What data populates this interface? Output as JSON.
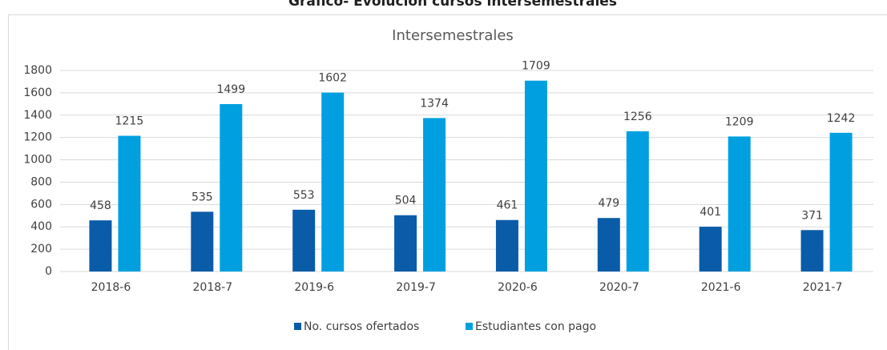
{
  "page_title": "Gráfico- Evolución cursos intersemestrales",
  "chart_data": {
    "type": "bar",
    "title": "Intersemestrales",
    "categories": [
      "2018-6",
      "2018-7",
      "2019-6",
      "2019-7",
      "2020-6",
      "2020-7",
      "2021-6",
      "2021-7"
    ],
    "series": [
      {
        "name": "No. cursos ofertados",
        "color": "#0a5ca8",
        "values": [
          458,
          535,
          553,
          504,
          461,
          479,
          401,
          371
        ]
      },
      {
        "name": "Estudiantes con pago",
        "color": "#00a0e0",
        "values": [
          1215,
          1499,
          1602,
          1374,
          1709,
          1256,
          1209,
          1242
        ]
      }
    ],
    "ylim": [
      0,
      1800
    ],
    "yticks": [
      0,
      200,
      400,
      600,
      800,
      1000,
      1200,
      1400,
      1600,
      1800
    ],
    "grid": true,
    "legend": "bottom"
  }
}
